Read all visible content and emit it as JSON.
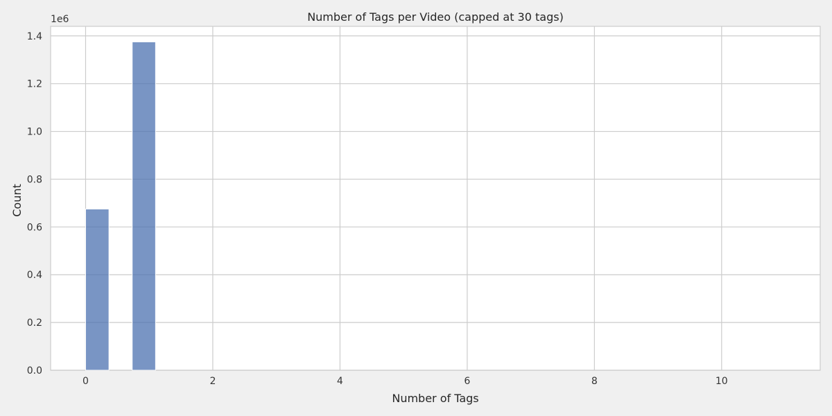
{
  "chart_data": {
    "type": "bar",
    "title": "Number of Tags per Video (capped at 30 tags)",
    "xlabel": "Number of Tags",
    "ylabel": "Count",
    "y_offset_label": "1e6",
    "xlim": [
      -0.55,
      11.55
    ],
    "ylim": [
      0,
      1.44
    ],
    "x_ticks": [
      0,
      2,
      4,
      6,
      8,
      10
    ],
    "y_ticks": [
      0.0,
      0.2,
      0.4,
      0.6,
      0.8,
      1.0,
      1.2,
      1.4
    ],
    "x_tick_labels": [
      "0",
      "2",
      "4",
      "6",
      "8",
      "10"
    ],
    "y_tick_labels": [
      "0.0",
      "0.2",
      "0.4",
      "0.6",
      "0.8",
      "1.0",
      "1.2",
      "1.4"
    ],
    "bars": [
      {
        "x_start": 0.0,
        "x_end": 0.367,
        "value": 0.675
      },
      {
        "x_start": 0.733,
        "x_end": 1.1,
        "value": 1.375
      }
    ],
    "grid": true,
    "bar_color": "#4c72b0"
  }
}
